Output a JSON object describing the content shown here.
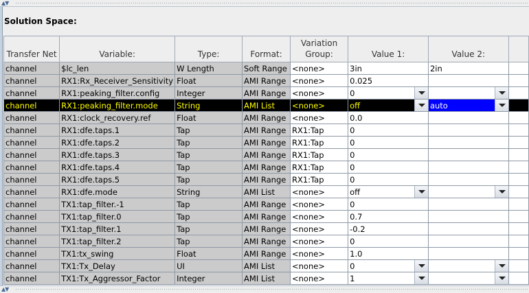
{
  "section_title": "Solution Space:",
  "columns": [
    "Transfer Net",
    "Variable:",
    "Type:",
    "Format:",
    "Variation Group:",
    "Value 1:",
    "Value 2:",
    ""
  ],
  "rows": [
    {
      "net": "channel",
      "variable": "$lc_len",
      "type": "W Length",
      "format": "Soft Range",
      "group": "<none>",
      "v1": "3in",
      "v2": "2in",
      "dropdown": false
    },
    {
      "net": "channel",
      "variable": "RX1:Rx_Receiver_Sensitivity",
      "type": "Float",
      "format": "AMI Range",
      "group": "<none>",
      "v1": "0.025",
      "v2": "",
      "dropdown": false
    },
    {
      "net": "channel",
      "variable": "RX1:peaking_filter.config",
      "type": "Integer",
      "format": "AMI Range",
      "group": "<none>",
      "v1": "0",
      "v2": "",
      "dropdown": true
    },
    {
      "net": "channel",
      "variable": "RX1:peaking_filter.mode",
      "type": "String",
      "format": "AMI List",
      "group": "<none>",
      "v1": "off",
      "v2": "auto",
      "dropdown": true,
      "selected": true
    },
    {
      "net": "channel",
      "variable": "RX1:clock_recovery.ref",
      "type": "Float",
      "format": "AMI Range",
      "group": "<none>",
      "v1": "0.0",
      "v2": "",
      "dropdown": false
    },
    {
      "net": "channel",
      "variable": "RX1:dfe.taps.1",
      "type": "Tap",
      "format": "AMI Range",
      "group": "RX1:Tap",
      "v1": "0",
      "v2": "",
      "dropdown": false
    },
    {
      "net": "channel",
      "variable": "RX1:dfe.taps.2",
      "type": "Tap",
      "format": "AMI Range",
      "group": "RX1:Tap",
      "v1": "0",
      "v2": "",
      "dropdown": false
    },
    {
      "net": "channel",
      "variable": "RX1:dfe.taps.3",
      "type": "Tap",
      "format": "AMI Range",
      "group": "RX1:Tap",
      "v1": "0",
      "v2": "",
      "dropdown": false
    },
    {
      "net": "channel",
      "variable": "RX1:dfe.taps.4",
      "type": "Tap",
      "format": "AMI Range",
      "group": "RX1:Tap",
      "v1": "0",
      "v2": "",
      "dropdown": false
    },
    {
      "net": "channel",
      "variable": "RX1:dfe.taps.5",
      "type": "Tap",
      "format": "AMI Range",
      "group": "RX1:Tap",
      "v1": "0",
      "v2": "",
      "dropdown": false
    },
    {
      "net": "channel",
      "variable": "RX1:dfe.mode",
      "type": "String",
      "format": "AMI List",
      "group": "<none>",
      "v1": "off",
      "v2": "",
      "dropdown": true
    },
    {
      "net": "channel",
      "variable": "TX1:tap_filter.-1",
      "type": "Tap",
      "format": "AMI Range",
      "group": "<none>",
      "v1": "0",
      "v2": "",
      "dropdown": false
    },
    {
      "net": "channel",
      "variable": "TX1:tap_filter.0",
      "type": "Tap",
      "format": "AMI Range",
      "group": "<none>",
      "v1": "0.7",
      "v2": "",
      "dropdown": false
    },
    {
      "net": "channel",
      "variable": "TX1:tap_filter.1",
      "type": "Tap",
      "format": "AMI Range",
      "group": "<none>",
      "v1": "-0.2",
      "v2": "",
      "dropdown": false
    },
    {
      "net": "channel",
      "variable": "TX1:tap_filter.2",
      "type": "Tap",
      "format": "AMI Range",
      "group": "<none>",
      "v1": "0",
      "v2": "",
      "dropdown": false
    },
    {
      "net": "channel",
      "variable": "TX1:tx_swing",
      "type": "Float",
      "format": "AMI Range",
      "group": "<none>",
      "v1": "1.0",
      "v2": "",
      "dropdown": false
    },
    {
      "net": "channel",
      "variable": "TX1:Tx_Delay",
      "type": "UI",
      "format": "AMI List",
      "group": "<none>",
      "v1": "0",
      "v2": "",
      "dropdown": true
    },
    {
      "net": "channel",
      "variable": "TX1:Tx_Aggressor_Factor",
      "type": "Integer",
      "format": "AMI List",
      "group": "<none>",
      "v1": "1",
      "v2": "",
      "dropdown": true
    }
  ]
}
